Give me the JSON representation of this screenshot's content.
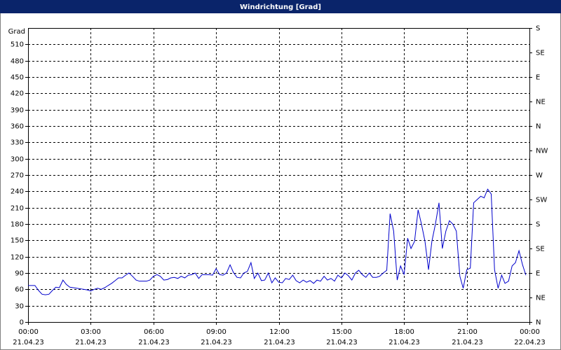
{
  "chart_data": {
    "type": "line",
    "title": "Windrichtung [Grad]",
    "y_label": "Grad",
    "x": [
      0,
      0.17,
      0.33,
      0.5,
      0.67,
      0.83,
      1,
      1.17,
      1.33,
      1.5,
      1.67,
      1.83,
      2,
      2.17,
      2.33,
      2.5,
      2.67,
      2.83,
      3,
      3.17,
      3.33,
      3.5,
      3.67,
      3.83,
      4,
      4.17,
      4.33,
      4.5,
      4.67,
      4.83,
      5,
      5.17,
      5.33,
      5.5,
      5.67,
      5.83,
      6,
      6.17,
      6.33,
      6.5,
      6.67,
      6.83,
      7,
      7.17,
      7.33,
      7.5,
      7.67,
      7.83,
      8,
      8.17,
      8.33,
      8.5,
      8.67,
      8.83,
      9,
      9.17,
      9.33,
      9.5,
      9.67,
      9.83,
      10,
      10.17,
      10.33,
      10.5,
      10.67,
      10.83,
      11,
      11.17,
      11.33,
      11.5,
      11.67,
      11.83,
      12,
      12.17,
      12.33,
      12.5,
      12.67,
      12.83,
      13,
      13.17,
      13.33,
      13.5,
      13.67,
      13.83,
      14,
      14.17,
      14.33,
      14.5,
      14.67,
      14.83,
      15,
      15.17,
      15.33,
      15.5,
      15.67,
      15.83,
      16,
      16.17,
      16.33,
      16.5,
      16.67,
      16.83,
      17,
      17.17,
      17.33,
      17.5,
      17.67,
      17.83,
      18,
      18.17,
      18.33,
      18.5,
      18.67,
      18.83,
      19,
      19.17,
      19.33,
      19.5,
      19.67,
      19.83,
      20,
      20.17,
      20.33,
      20.5,
      20.67,
      20.83,
      21,
      21.17,
      21.33,
      21.5,
      21.67,
      21.83,
      22,
      22.17,
      22.33,
      22.5,
      22.67,
      22.83,
      23,
      23.17,
      23.33,
      23.5,
      23.67,
      23.83
    ],
    "series": [
      {
        "color": "#0000cc",
        "values": [
          67,
          67,
          67,
          58,
          51,
          50,
          51,
          58,
          64,
          63,
          77,
          69,
          64,
          63,
          62,
          61,
          60,
          59,
          57,
          60,
          62,
          60,
          63,
          67,
          71,
          76,
          81,
          81,
          86,
          90,
          84,
          77,
          75,
          75,
          75,
          77,
          84,
          87,
          84,
          77,
          78,
          81,
          82,
          80,
          84,
          81,
          86,
          87,
          90,
          80,
          87,
          87,
          87,
          86,
          98,
          87,
          86,
          90,
          105,
          91,
          82,
          81,
          90,
          93,
          109,
          80,
          90,
          76,
          77,
          90,
          72,
          81,
          73,
          72,
          80,
          78,
          86,
          76,
          72,
          77,
          73,
          76,
          71,
          77,
          75,
          84,
          77,
          80,
          75,
          86,
          81,
          90,
          85,
          77,
          90,
          95,
          87,
          82,
          90,
          82,
          82,
          84,
          90,
          95,
          199,
          167,
          77,
          103,
          87,
          154,
          135,
          148,
          206,
          180,
          148,
          96,
          148,
          180,
          219,
          135,
          167,
          186,
          180,
          167,
          84,
          62,
          96,
          99,
          219,
          225,
          231,
          228,
          244,
          235,
          96,
          62,
          86,
          71,
          75,
          103,
          109,
          131,
          105,
          86
        ]
      }
    ],
    "xlim": [
      0,
      24
    ],
    "xticks": [
      {
        "value": 0,
        "label": "00:00"
      },
      {
        "value": 3,
        "label": "03:00"
      },
      {
        "value": 6,
        "label": "06:00"
      },
      {
        "value": 9,
        "label": "09:00"
      },
      {
        "value": 12,
        "label": "12:00"
      },
      {
        "value": 15,
        "label": "15:00"
      },
      {
        "value": 18,
        "label": "18:00"
      },
      {
        "value": 21,
        "label": "21:00"
      },
      {
        "value": 24,
        "label": "00:00"
      }
    ],
    "x_tick_dates": [
      "21.04.23",
      "21.04.23",
      "21.04.23",
      "21.04.23",
      "21.04.23",
      "21.04.23",
      "21.04.23",
      "21.04.23",
      "22.04.23"
    ],
    "ylim": [
      0,
      540
    ],
    "yticks": [
      0,
      30,
      60,
      90,
      120,
      150,
      180,
      210,
      240,
      270,
      300,
      330,
      360,
      390,
      420,
      450,
      480,
      510
    ],
    "y2lim": [
      0,
      540
    ],
    "y2ticks": [
      {
        "value": 0,
        "label": "N"
      },
      {
        "value": 45,
        "label": "NE"
      },
      {
        "value": 90,
        "label": "E"
      },
      {
        "value": 135,
        "label": "SE"
      },
      {
        "value": 180,
        "label": "S"
      },
      {
        "value": 225,
        "label": "SW"
      },
      {
        "value": 270,
        "label": "W"
      },
      {
        "value": 315,
        "label": "NW"
      },
      {
        "value": 360,
        "label": "N"
      },
      {
        "value": 405,
        "label": "NE"
      },
      {
        "value": 450,
        "label": "E"
      },
      {
        "value": 495,
        "label": "SE"
      },
      {
        "value": 540,
        "label": "S"
      }
    ],
    "grid": true
  }
}
